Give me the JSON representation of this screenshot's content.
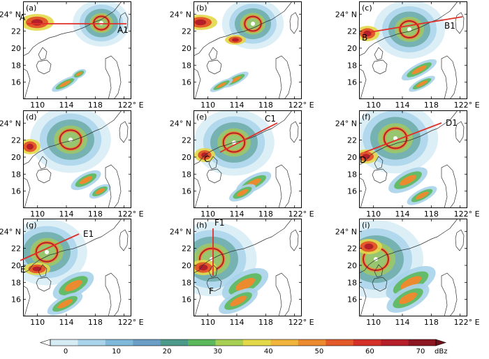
{
  "latitude_ticks": [
    "24° N",
    "22",
    "20",
    "18",
    "16"
  ],
  "longitude_ticks": [
    "110",
    "114",
    "118",
    "122° E"
  ],
  "panels": [
    {
      "label": "(a)",
      "section": {
        "start": "A",
        "end": "A1"
      }
    },
    {
      "label": "(b)",
      "section": null
    },
    {
      "label": "(c)",
      "section": {
        "start": "B",
        "end": "B1"
      }
    },
    {
      "label": "(d)",
      "section": null
    },
    {
      "label": "(e)",
      "section": {
        "start": "C",
        "end": "C1"
      }
    },
    {
      "label": "(f)",
      "section": {
        "start": "D",
        "end": "D1"
      }
    },
    {
      "label": "(g)",
      "section": {
        "start": "E",
        "end": "E1"
      }
    },
    {
      "label": "(h)",
      "section": {
        "start": "F",
        "end": "F1"
      }
    },
    {
      "label": "(i)",
      "section": null
    }
  ],
  "colorbar": {
    "ticks": [
      "0",
      "10",
      "20",
      "30",
      "40",
      "50",
      "60",
      "70"
    ],
    "unit": "dBz",
    "colors": [
      "#d6ecf5",
      "#a9d3ea",
      "#7fb8d8",
      "#6a9ec6",
      "#4e9a8a",
      "#5cb85c",
      "#a6cf54",
      "#e3d84a",
      "#f0b43c",
      "#ec8a30",
      "#e35a2a",
      "#d3302a",
      "#b51f2a",
      "#8c1622"
    ]
  }
}
